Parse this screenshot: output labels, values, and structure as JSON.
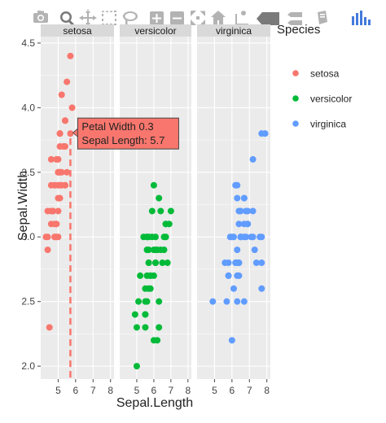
{
  "modebar": {
    "icons": [
      "camera-icon",
      "zoom-icon",
      "pan-icon",
      "box-select-icon",
      "lasso-icon",
      "zoom-in-icon",
      "zoom-out-icon",
      "autoscale-icon",
      "reset-axes-icon",
      "spike-lines-icon",
      "hover-closest-icon",
      "hover-compare-icon",
      "plotly-logo-icon"
    ],
    "color": "#b3b3b3"
  },
  "colors": {
    "setosa": "#f8766d",
    "versicolor": "#00ba38",
    "virginica": "#619cff",
    "panel_bg": "#ebebeb",
    "grid": "#ffffff",
    "strip_bg": "#d9d9d9"
  },
  "chart_data": {
    "type": "scatter",
    "facet_by": "Species",
    "xlabel": "Sepal.Length",
    "ylabel": "Sepal.Width",
    "xlim": [
      4,
      8.2
    ],
    "ylim": [
      1.9,
      4.55
    ],
    "x_ticks": [
      "5",
      "6",
      "7",
      "8"
    ],
    "y_ticks": [
      "2.0",
      "2.5",
      "3.0",
      "3.5",
      "4.0",
      "4.5"
    ],
    "y_tick_values": [
      2.0,
      2.5,
      3.0,
      3.5,
      4.0,
      4.5
    ],
    "x_tick_values": [
      5,
      6,
      7,
      8
    ],
    "grid": true,
    "legend": {
      "title": "Species",
      "placement": "right",
      "entries": [
        "setosa",
        "versicolor",
        "virginica"
      ]
    },
    "panels": [
      {
        "name": "setosa",
        "points": [
          [
            5.1,
            3.5
          ],
          [
            4.9,
            3.0
          ],
          [
            4.7,
            3.2
          ],
          [
            4.6,
            3.1
          ],
          [
            5.0,
            3.6
          ],
          [
            5.4,
            3.9
          ],
          [
            4.6,
            3.4
          ],
          [
            5.0,
            3.4
          ],
          [
            4.4,
            2.9
          ],
          [
            4.9,
            3.1
          ],
          [
            5.4,
            3.7
          ],
          [
            4.8,
            3.4
          ],
          [
            4.8,
            3.0
          ],
          [
            4.3,
            3.0
          ],
          [
            5.8,
            4.0
          ],
          [
            5.7,
            4.4
          ],
          [
            5.4,
            3.9
          ],
          [
            5.1,
            3.5
          ],
          [
            5.7,
            3.8
          ],
          [
            5.1,
            3.8
          ],
          [
            5.4,
            3.4
          ],
          [
            5.1,
            3.7
          ],
          [
            4.6,
            3.6
          ],
          [
            5.1,
            3.3
          ],
          [
            4.8,
            3.4
          ],
          [
            5.0,
            3.0
          ],
          [
            5.0,
            3.4
          ],
          [
            5.2,
            3.5
          ],
          [
            5.2,
            3.4
          ],
          [
            4.7,
            3.2
          ],
          [
            4.8,
            3.1
          ],
          [
            5.4,
            3.4
          ],
          [
            5.2,
            4.1
          ],
          [
            5.5,
            4.2
          ],
          [
            4.9,
            3.1
          ],
          [
            5.0,
            3.2
          ],
          [
            5.5,
            3.5
          ],
          [
            4.9,
            3.6
          ],
          [
            4.4,
            3.0
          ],
          [
            5.1,
            3.4
          ],
          [
            5.0,
            3.5
          ],
          [
            4.5,
            2.3
          ],
          [
            4.4,
            3.2
          ],
          [
            5.0,
            3.5
          ],
          [
            5.1,
            3.8
          ],
          [
            4.8,
            3.0
          ],
          [
            5.1,
            3.8
          ],
          [
            4.6,
            3.2
          ],
          [
            5.3,
            3.7
          ],
          [
            5.0,
            3.3
          ]
        ]
      },
      {
        "name": "versicolor",
        "points": [
          [
            7.0,
            3.2
          ],
          [
            6.4,
            3.2
          ],
          [
            6.9,
            3.1
          ],
          [
            5.5,
            2.3
          ],
          [
            6.5,
            2.8
          ],
          [
            5.7,
            2.8
          ],
          [
            6.3,
            3.3
          ],
          [
            4.9,
            2.4
          ],
          [
            6.6,
            2.9
          ],
          [
            5.2,
            2.7
          ],
          [
            5.0,
            2.0
          ],
          [
            5.9,
            3.0
          ],
          [
            6.0,
            2.2
          ],
          [
            6.1,
            2.9
          ],
          [
            5.6,
            2.9
          ],
          [
            6.7,
            3.1
          ],
          [
            5.6,
            3.0
          ],
          [
            5.8,
            2.7
          ],
          [
            6.2,
            2.2
          ],
          [
            5.6,
            2.5
          ],
          [
            5.9,
            3.2
          ],
          [
            6.1,
            2.8
          ],
          [
            6.3,
            2.5
          ],
          [
            6.1,
            2.8
          ],
          [
            6.4,
            2.9
          ],
          [
            6.6,
            3.0
          ],
          [
            6.8,
            2.8
          ],
          [
            6.7,
            3.0
          ],
          [
            6.0,
            2.9
          ],
          [
            5.7,
            2.6
          ],
          [
            5.5,
            2.4
          ],
          [
            5.5,
            2.4
          ],
          [
            5.8,
            2.7
          ],
          [
            6.0,
            2.7
          ],
          [
            5.4,
            3.0
          ],
          [
            6.0,
            3.4
          ],
          [
            6.7,
            3.1
          ],
          [
            6.3,
            2.3
          ],
          [
            5.6,
            3.0
          ],
          [
            5.5,
            2.5
          ],
          [
            5.5,
            2.6
          ],
          [
            6.1,
            3.0
          ],
          [
            5.8,
            2.6
          ],
          [
            5.0,
            2.3
          ],
          [
            5.6,
            2.7
          ],
          [
            5.7,
            3.0
          ],
          [
            5.7,
            2.9
          ],
          [
            6.2,
            2.9
          ],
          [
            5.1,
            2.5
          ],
          [
            5.7,
            2.8
          ]
        ]
      },
      {
        "name": "virginica",
        "points": [
          [
            6.3,
            3.3
          ],
          [
            5.8,
            2.7
          ],
          [
            7.1,
            3.0
          ],
          [
            6.3,
            2.9
          ],
          [
            6.5,
            3.0
          ],
          [
            7.6,
            3.0
          ],
          [
            4.9,
            2.5
          ],
          [
            7.3,
            2.9
          ],
          [
            6.7,
            2.5
          ],
          [
            7.2,
            3.6
          ],
          [
            6.5,
            3.2
          ],
          [
            6.4,
            2.7
          ],
          [
            6.8,
            3.0
          ],
          [
            5.7,
            2.5
          ],
          [
            5.8,
            2.8
          ],
          [
            6.4,
            3.2
          ],
          [
            6.5,
            3.0
          ],
          [
            7.7,
            3.8
          ],
          [
            7.7,
            2.6
          ],
          [
            6.0,
            2.2
          ],
          [
            6.9,
            3.2
          ],
          [
            5.6,
            2.8
          ],
          [
            7.7,
            2.8
          ],
          [
            6.3,
            2.7
          ],
          [
            6.7,
            3.3
          ],
          [
            7.2,
            3.2
          ],
          [
            6.2,
            2.8
          ],
          [
            6.1,
            3.0
          ],
          [
            6.4,
            2.8
          ],
          [
            7.2,
            3.0
          ],
          [
            7.4,
            2.8
          ],
          [
            7.9,
            3.8
          ],
          [
            6.4,
            2.8
          ],
          [
            6.3,
            2.8
          ],
          [
            6.1,
            2.6
          ],
          [
            7.7,
            3.0
          ],
          [
            6.3,
            3.4
          ],
          [
            6.4,
            3.1
          ],
          [
            6.0,
            3.0
          ],
          [
            6.9,
            3.1
          ],
          [
            6.7,
            3.1
          ],
          [
            6.9,
            3.1
          ],
          [
            5.8,
            2.7
          ],
          [
            6.8,
            3.2
          ],
          [
            6.7,
            3.3
          ],
          [
            6.7,
            3.0
          ],
          [
            6.3,
            2.5
          ],
          [
            6.5,
            3.0
          ],
          [
            6.2,
            3.4
          ],
          [
            5.9,
            3.0
          ]
        ]
      }
    ],
    "hover": {
      "panel": "setosa",
      "x": 5.7,
      "y": 3.8,
      "line1": "Petal Width 0.3",
      "line2": "Sepal Length: 5.7"
    }
  }
}
